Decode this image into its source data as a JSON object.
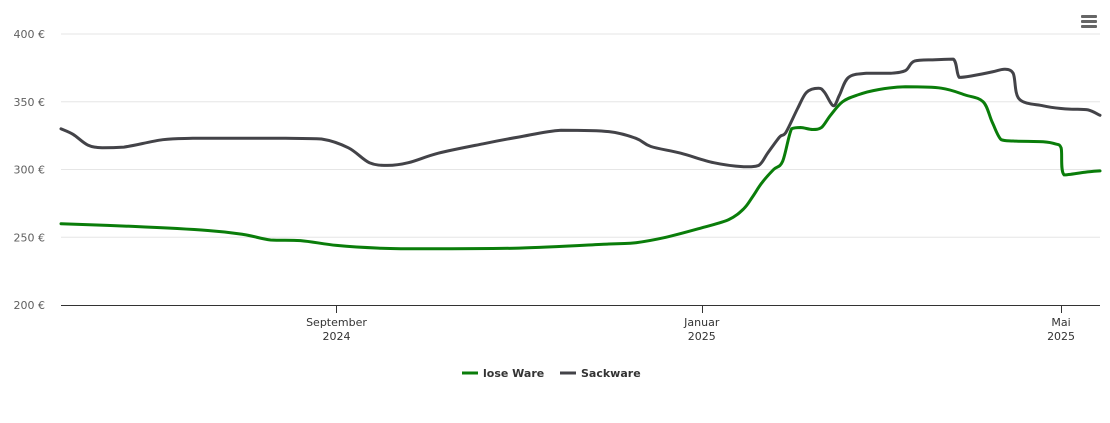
{
  "chart_data": {
    "type": "line",
    "title": "",
    "xlabel": "",
    "ylabel": "",
    "ylim": [
      200,
      400
    ],
    "xlim": [
      "2024-06-01",
      "2025-05-14"
    ],
    "grid": true,
    "legend": "bottom-center",
    "y_ticks": [
      {
        "value": 400,
        "label": "400 €"
      },
      {
        "value": 350,
        "label": "350 €"
      },
      {
        "value": 300,
        "label": "300 €"
      },
      {
        "value": 250,
        "label": "250 €"
      },
      {
        "value": 200,
        "label": "200 €"
      }
    ],
    "x_ticks": [
      {
        "date": "2024-09-01",
        "line1": "September",
        "line2": "2024"
      },
      {
        "date": "2025-01-01",
        "line1": "Januar",
        "line2": "2025"
      },
      {
        "date": "2025-05-01",
        "line1": "Mai",
        "line2": "2025"
      }
    ],
    "series": [
      {
        "name": "lose Ware",
        "color": "#0a7d0a",
        "points": [
          [
            "2024-06-01",
            260
          ],
          [
            "2024-06-25",
            258
          ],
          [
            "2024-07-20",
            255
          ],
          [
            "2024-08-01",
            252
          ],
          [
            "2024-08-10",
            248
          ],
          [
            "2024-08-20",
            247.5
          ],
          [
            "2024-09-01",
            244
          ],
          [
            "2024-09-15",
            242
          ],
          [
            "2024-10-01",
            241.5
          ],
          [
            "2024-11-01",
            242
          ],
          [
            "2024-12-01",
            245
          ],
          [
            "2024-12-10",
            246
          ],
          [
            "2024-12-20",
            250
          ],
          [
            "2025-01-01",
            257
          ],
          [
            "2025-01-10",
            263
          ],
          [
            "2025-01-15",
            271
          ],
          [
            "2025-01-18",
            280
          ],
          [
            "2025-01-21",
            290
          ],
          [
            "2025-01-25",
            300
          ],
          [
            "2025-01-28",
            306
          ],
          [
            "2025-01-31",
            330
          ],
          [
            "2025-02-03",
            331
          ],
          [
            "2025-02-07",
            329.5
          ],
          [
            "2025-02-10",
            331
          ],
          [
            "2025-02-13",
            340
          ],
          [
            "2025-02-17",
            350
          ],
          [
            "2025-02-22",
            355
          ],
          [
            "2025-03-01",
            359
          ],
          [
            "2025-03-10",
            361
          ],
          [
            "2025-03-22",
            360
          ],
          [
            "2025-03-30",
            355
          ],
          [
            "2025-04-05",
            350
          ],
          [
            "2025-04-08",
            335
          ],
          [
            "2025-04-11",
            322
          ],
          [
            "2025-04-15",
            321
          ],
          [
            "2025-04-25",
            320.5
          ],
          [
            "2025-04-29",
            319
          ],
          [
            "2025-05-01",
            316
          ],
          [
            "2025-05-02",
            296
          ],
          [
            "2025-05-09",
            298
          ],
          [
            "2025-05-14",
            299
          ]
        ]
      },
      {
        "name": "Sackware",
        "color": "#434348",
        "points": [
          [
            "2024-06-01",
            330
          ],
          [
            "2024-06-05",
            326
          ],
          [
            "2024-06-10",
            318
          ],
          [
            "2024-06-15",
            316
          ],
          [
            "2024-06-22",
            316.5
          ],
          [
            "2024-07-05",
            322
          ],
          [
            "2024-07-15",
            323
          ],
          [
            "2024-08-01",
            323
          ],
          [
            "2024-08-15",
            323
          ],
          [
            "2024-08-27",
            322.5
          ],
          [
            "2024-09-05",
            316
          ],
          [
            "2024-09-12",
            305
          ],
          [
            "2024-09-18",
            303
          ],
          [
            "2024-09-25",
            305
          ],
          [
            "2024-10-05",
            312
          ],
          [
            "2024-10-20",
            319
          ],
          [
            "2024-11-01",
            324
          ],
          [
            "2024-11-15",
            329
          ],
          [
            "2024-12-01",
            328
          ],
          [
            "2024-12-10",
            323
          ],
          [
            "2024-12-15",
            317
          ],
          [
            "2024-12-25",
            312
          ],
          [
            "2025-01-05",
            305
          ],
          [
            "2025-01-15",
            302
          ],
          [
            "2025-01-20",
            303
          ],
          [
            "2025-01-23",
            312
          ],
          [
            "2025-01-27",
            324
          ],
          [
            "2025-01-29",
            327
          ],
          [
            "2025-02-02",
            345
          ],
          [
            "2025-02-05",
            357
          ],
          [
            "2025-02-09",
            360
          ],
          [
            "2025-02-11",
            357
          ],
          [
            "2025-02-14",
            347
          ],
          [
            "2025-02-16",
            355
          ],
          [
            "2025-02-19",
            368
          ],
          [
            "2025-02-25",
            371
          ],
          [
            "2025-03-05",
            371
          ],
          [
            "2025-03-10",
            373
          ],
          [
            "2025-03-13",
            380
          ],
          [
            "2025-03-20",
            381
          ],
          [
            "2025-03-26",
            381.5
          ],
          [
            "2025-03-28",
            368
          ],
          [
            "2025-04-01",
            369
          ],
          [
            "2025-04-08",
            372
          ],
          [
            "2025-04-12",
            374
          ],
          [
            "2025-04-15",
            371
          ],
          [
            "2025-04-17",
            352
          ],
          [
            "2025-04-25",
            347
          ],
          [
            "2025-05-01",
            345
          ],
          [
            "2025-05-05",
            344.5
          ],
          [
            "2025-05-10",
            344
          ],
          [
            "2025-05-14",
            340
          ]
        ]
      }
    ]
  },
  "legend": {
    "items": [
      {
        "label": "lose Ware",
        "color": "#0a7d0a"
      },
      {
        "label": "Sackware",
        "color": "#434348"
      }
    ]
  },
  "menu": {
    "icon": "hamburger-menu-icon"
  }
}
